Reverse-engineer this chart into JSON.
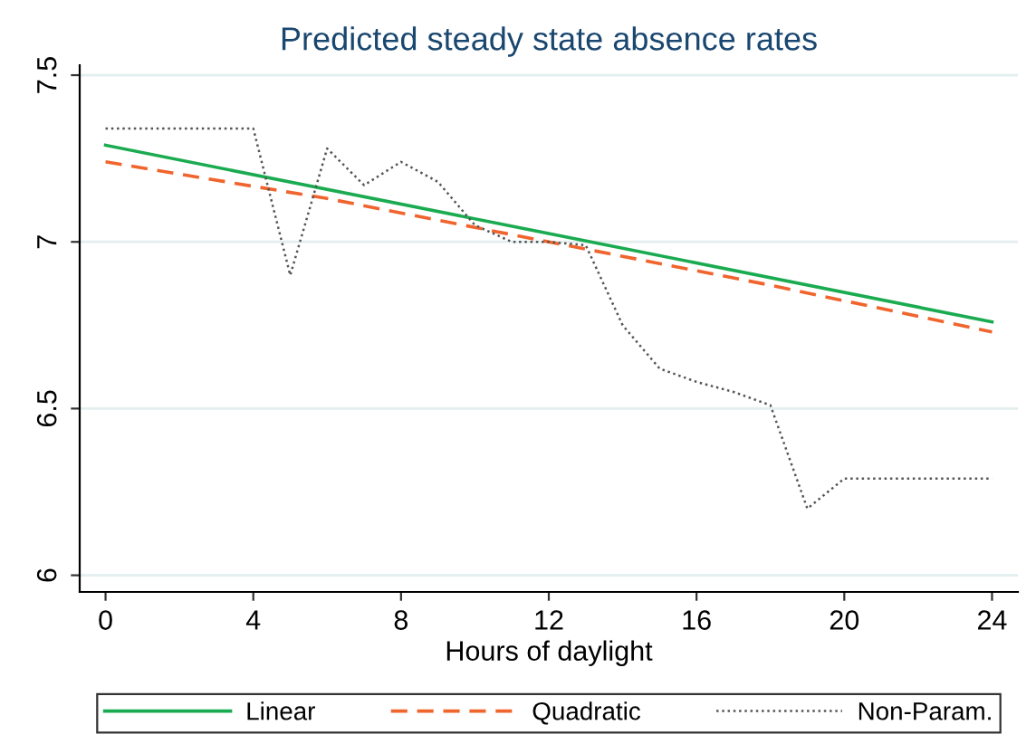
{
  "chart_data": {
    "type": "line",
    "title": "Predicted steady state absence rates",
    "xlabel": "Hours of daylight",
    "xlim": [
      -0.7,
      24.7
    ],
    "xticks": [
      0,
      4,
      8,
      12,
      16,
      20,
      24
    ],
    "ylim": [
      5.95,
      7.53
    ],
    "yticks": [
      6,
      6.5,
      7,
      7.5
    ],
    "grid": "y",
    "legend": "bottom",
    "series": [
      {
        "name": "Linear",
        "color": "#1aab50",
        "line_style": "solid",
        "x": [
          0,
          24
        ],
        "values": [
          7.29,
          6.76
        ]
      },
      {
        "name": "Quadratic",
        "color": "#f0642d",
        "line_style": "dashed",
        "x": [
          0,
          6,
          12,
          18,
          24
        ],
        "values": [
          7.24,
          7.13,
          7.0,
          6.87,
          6.73
        ]
      },
      {
        "name": "Non-Param.",
        "color": "#555555",
        "line_style": "dotted",
        "x": [
          0,
          1,
          2,
          3,
          4,
          5,
          6,
          7,
          8,
          9,
          10,
          11,
          12,
          13,
          14,
          15,
          16,
          17,
          18,
          19,
          20,
          21,
          22,
          23,
          24
        ],
        "values": [
          7.34,
          7.34,
          7.34,
          7.34,
          7.34,
          6.9,
          7.28,
          7.17,
          7.24,
          7.18,
          7.05,
          7.0,
          7.0,
          6.99,
          6.75,
          6.62,
          6.58,
          6.55,
          6.51,
          6.2,
          6.29,
          6.29,
          6.29,
          6.29,
          6.29
        ]
      }
    ]
  }
}
